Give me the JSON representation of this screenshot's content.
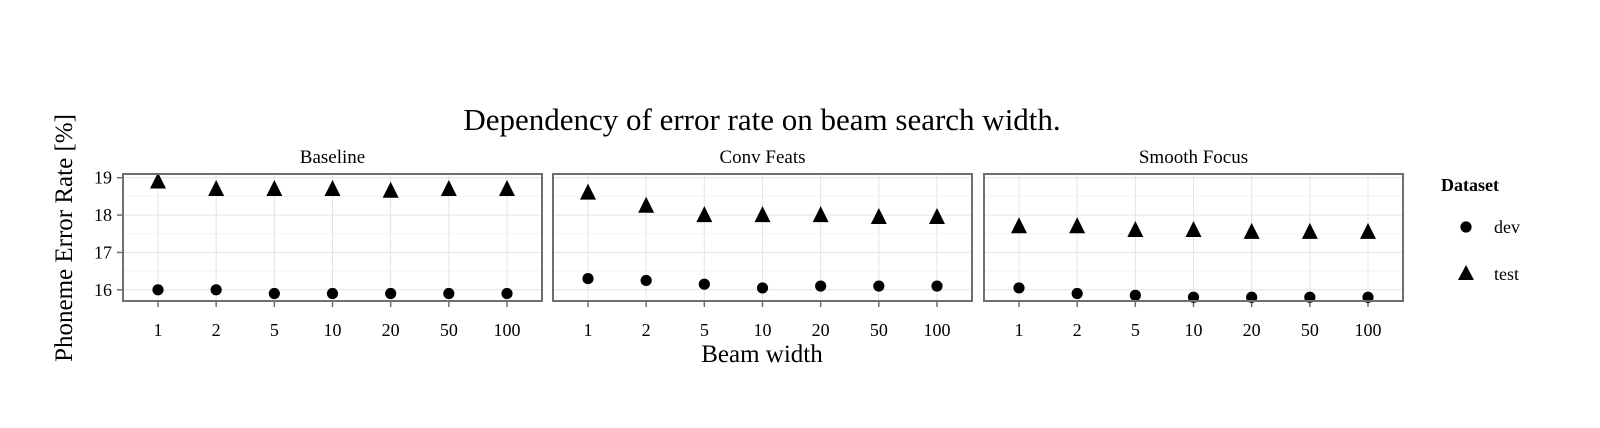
{
  "chart_data": {
    "type": "scatter",
    "title": "Dependency of error rate on beam search width.",
    "xlabel": "Beam width",
    "ylabel": "Phoneme Error Rate [%]",
    "categories": [
      "1",
      "2",
      "5",
      "10",
      "20",
      "50",
      "100"
    ],
    "y_ticks": [
      "16",
      "17",
      "18",
      "19"
    ],
    "ylim": [
      15.7,
      19.1
    ],
    "grid": true,
    "legend": {
      "title": "Dataset",
      "position": "right",
      "entries": [
        {
          "label": "dev",
          "shape": "circle"
        },
        {
          "label": "test",
          "shape": "triangle"
        }
      ]
    },
    "facets": [
      {
        "name": "Baseline",
        "series": [
          {
            "name": "dev",
            "values": [
              16.0,
              16.0,
              15.9,
              15.9,
              15.9,
              15.9,
              15.9
            ]
          },
          {
            "name": "test",
            "values": [
              18.9,
              18.7,
              18.7,
              18.7,
              18.65,
              18.7,
              18.7
            ]
          }
        ]
      },
      {
        "name": "Conv Feats",
        "series": [
          {
            "name": "dev",
            "values": [
              16.3,
              16.25,
              16.15,
              16.05,
              16.1,
              16.1,
              16.1
            ]
          },
          {
            "name": "test",
            "values": [
              18.6,
              18.25,
              18.0,
              18.0,
              18.0,
              17.95,
              17.95
            ]
          }
        ]
      },
      {
        "name": "Smooth Focus",
        "series": [
          {
            "name": "dev",
            "values": [
              16.05,
              15.9,
              15.85,
              15.8,
              15.8,
              15.8,
              15.8
            ]
          },
          {
            "name": "test",
            "values": [
              17.7,
              17.7,
              17.6,
              17.6,
              17.55,
              17.55,
              17.55
            ]
          }
        ]
      }
    ]
  }
}
